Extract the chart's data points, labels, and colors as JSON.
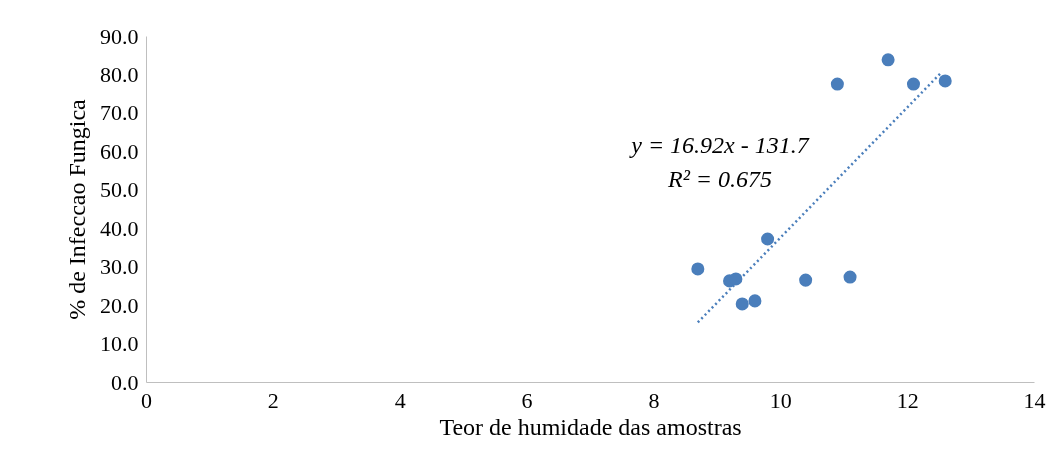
{
  "chart_data": {
    "type": "scatter",
    "xlabel": "Teor de humidade das amostras",
    "ylabel": "% de Infeccao Fungica",
    "xlim": [
      0,
      14
    ],
    "xticks": [
      0,
      2,
      4,
      6,
      8,
      10,
      12,
      14
    ],
    "ylim": [
      0,
      90
    ],
    "yticks": [
      {
        "value": 0,
        "label": "0.0"
      },
      {
        "value": 10,
        "label": "10.0"
      },
      {
        "value": 20,
        "label": "20.0"
      },
      {
        "value": 30,
        "label": "30.0"
      },
      {
        "value": 40,
        "label": "40.0"
      },
      {
        "value": 50,
        "label": "50.0"
      },
      {
        "value": 60,
        "label": "60.0"
      },
      {
        "value": 70,
        "label": "70.0"
      },
      {
        "value": 80,
        "label": "80.0"
      },
      {
        "value": 90,
        "label": "90.0"
      }
    ],
    "grid": false,
    "legend": false,
    "marker": "circle",
    "series": [
      {
        "color": "#4a7ebb",
        "x": [
          8.7,
          9.2,
          9.3,
          9.4,
          9.6,
          9.8,
          10.4,
          11.1,
          10.9,
          11.7,
          12.1,
          12.6
        ],
        "values": [
          29.4,
          26.3,
          26.8,
          20.3,
          21.1,
          37.2,
          26.5,
          27.3,
          77.5,
          83.8,
          77.5,
          78.3
        ]
      },
      {
        "type": "line",
        "color": "#4a7ebb",
        "line_style": "dotted",
        "marker": "none",
        "x": [
          8.7,
          12.55
        ],
        "values": [
          15.5,
          80.7
        ]
      }
    ],
    "annotations": [
      "y = 16.92x - 131.7",
      "R² = 0.675"
    ]
  }
}
